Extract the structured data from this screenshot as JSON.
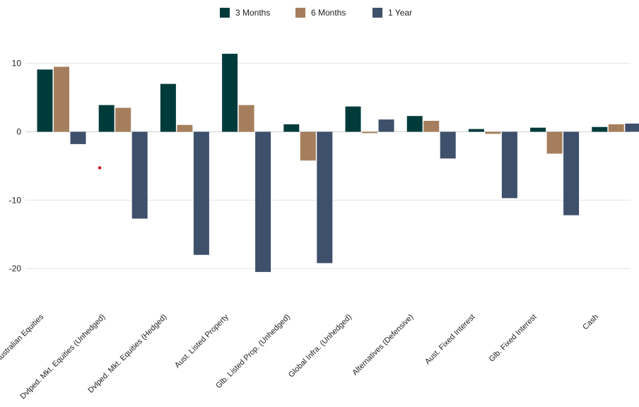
{
  "chart_data": {
    "type": "bar",
    "title": "",
    "xlabel": "",
    "ylabel": "",
    "ylim": [
      -24,
      12
    ],
    "yticks": [
      10,
      0,
      -10,
      -20
    ],
    "grid": true,
    "legend_position": "top-center",
    "categories": [
      "Australian Equities",
      "Dvlped. Mkt. Equities (Unhedged)",
      "Dvlped. Mkt. Equities (Hedged)",
      "Aust. Listed Property",
      "Glb. Listed Prop. (Unhedged)",
      "Global Infra. (Unhedged)",
      "Alternatives (Defensive)",
      "Aust. Fixed Interest",
      "Glb. Fixed Interest",
      "Cash"
    ],
    "series": [
      {
        "name": "3 Months",
        "color": "#003b3b",
        "values": [
          9.1,
          3.9,
          7.0,
          11.4,
          1.1,
          3.7,
          2.3,
          0.4,
          0.6,
          0.7
        ]
      },
      {
        "name": "6 Months",
        "color": "#a57f5d",
        "values": [
          9.5,
          3.5,
          1.0,
          3.9,
          -4.2,
          -0.2,
          1.6,
          -0.3,
          -3.2,
          1.1
        ]
      },
      {
        "name": "1 Year",
        "color": "#3e506b",
        "values": [
          -1.8,
          -12.7,
          -18.0,
          -20.5,
          -19.2,
          1.8,
          -3.9,
          -9.7,
          -12.2,
          1.2
        ]
      }
    ]
  }
}
